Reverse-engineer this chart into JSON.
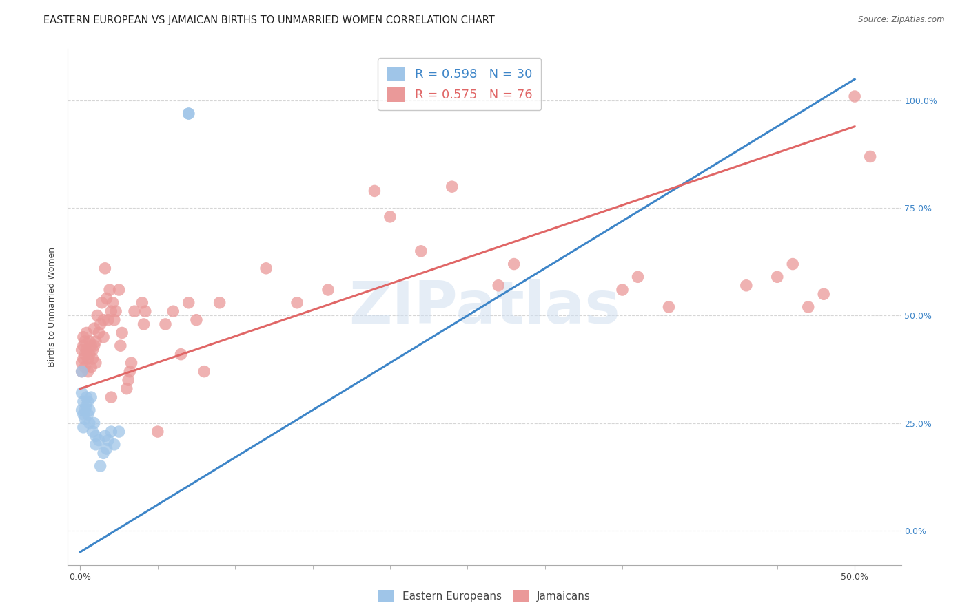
{
  "title": "EASTERN EUROPEAN VS JAMAICAN BIRTHS TO UNMARRIED WOMEN CORRELATION CHART",
  "source": "Source: ZipAtlas.com",
  "ylabel": "Births to Unmarried Women",
  "xlabel_labels": [
    "0.0%",
    "50.0%"
  ],
  "xlabel_vals": [
    0.0,
    0.5
  ],
  "ylabel_ticks_right": [
    "0.0%",
    "25.0%",
    "50.0%",
    "75.0%",
    "100.0%"
  ],
  "ylabel_vals": [
    0.0,
    0.25,
    0.5,
    0.75,
    1.0
  ],
  "xlim": [
    -0.008,
    0.53
  ],
  "ylim": [
    -0.08,
    1.12
  ],
  "blue_color": "#9fc5e8",
  "pink_color": "#ea9999",
  "blue_line_color": "#3d85c8",
  "pink_line_color": "#e06666",
  "R_blue": 0.598,
  "N_blue": 30,
  "R_pink": 0.575,
  "N_pink": 76,
  "legend_label_blue": "Eastern Europeans",
  "legend_label_pink": "Jamaicans",
  "blue_scatter_x": [
    0.001,
    0.001,
    0.001,
    0.002,
    0.002,
    0.002,
    0.003,
    0.003,
    0.004,
    0.004,
    0.005,
    0.005,
    0.006,
    0.006,
    0.007,
    0.008,
    0.009,
    0.01,
    0.01,
    0.012,
    0.013,
    0.015,
    0.016,
    0.017,
    0.018,
    0.02,
    0.022,
    0.025,
    0.07,
    0.07
  ],
  "blue_scatter_y": [
    0.37,
    0.32,
    0.28,
    0.3,
    0.27,
    0.24,
    0.28,
    0.26,
    0.29,
    0.31,
    0.27,
    0.3,
    0.25,
    0.28,
    0.31,
    0.23,
    0.25,
    0.2,
    0.22,
    0.21,
    0.15,
    0.18,
    0.22,
    0.19,
    0.21,
    0.23,
    0.2,
    0.23,
    0.97,
    0.97
  ],
  "pink_scatter_x": [
    0.001,
    0.001,
    0.001,
    0.002,
    0.002,
    0.002,
    0.003,
    0.003,
    0.003,
    0.004,
    0.004,
    0.005,
    0.005,
    0.006,
    0.006,
    0.007,
    0.007,
    0.008,
    0.008,
    0.009,
    0.009,
    0.01,
    0.01,
    0.011,
    0.012,
    0.013,
    0.014,
    0.015,
    0.015,
    0.016,
    0.017,
    0.018,
    0.019,
    0.02,
    0.02,
    0.021,
    0.022,
    0.023,
    0.025,
    0.026,
    0.027,
    0.03,
    0.031,
    0.032,
    0.033,
    0.035,
    0.04,
    0.041,
    0.042,
    0.05,
    0.055,
    0.06,
    0.065,
    0.07,
    0.075,
    0.08,
    0.09,
    0.12,
    0.14,
    0.16,
    0.19,
    0.2,
    0.22,
    0.24,
    0.27,
    0.28,
    0.35,
    0.36,
    0.38,
    0.43,
    0.45,
    0.46,
    0.47,
    0.48,
    0.5,
    0.51
  ],
  "pink_scatter_y": [
    0.37,
    0.39,
    0.42,
    0.4,
    0.43,
    0.45,
    0.38,
    0.41,
    0.44,
    0.42,
    0.46,
    0.37,
    0.4,
    0.41,
    0.44,
    0.38,
    0.43,
    0.4,
    0.42,
    0.43,
    0.47,
    0.39,
    0.44,
    0.5,
    0.46,
    0.48,
    0.53,
    0.45,
    0.49,
    0.61,
    0.54,
    0.49,
    0.56,
    0.31,
    0.51,
    0.53,
    0.49,
    0.51,
    0.56,
    0.43,
    0.46,
    0.33,
    0.35,
    0.37,
    0.39,
    0.51,
    0.53,
    0.48,
    0.51,
    0.23,
    0.48,
    0.51,
    0.41,
    0.53,
    0.49,
    0.37,
    0.53,
    0.61,
    0.53,
    0.56,
    0.79,
    0.73,
    0.65,
    0.8,
    0.57,
    0.62,
    0.56,
    0.59,
    0.52,
    0.57,
    0.59,
    0.62,
    0.52,
    0.55,
    1.01,
    0.87
  ],
  "blue_line_x": [
    0.0,
    0.5
  ],
  "blue_line_y": [
    -0.05,
    1.05
  ],
  "pink_line_x": [
    0.0,
    0.5
  ],
  "pink_line_y": [
    0.33,
    0.94
  ],
  "title_fontsize": 10.5,
  "axis_label_fontsize": 9,
  "tick_fontsize": 9,
  "legend_fontsize": 13,
  "watermark_text": "ZIPatlas"
}
